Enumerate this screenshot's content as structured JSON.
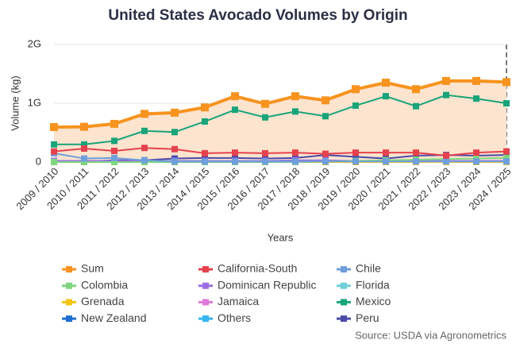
{
  "chart_data": {
    "type": "line",
    "title": "United States Avocado Volumes by Origin",
    "x_label": "Years",
    "y_label": "Volume (kg)",
    "source": "Source: USDA via Agronometrics",
    "categories": [
      "2009 / 2010",
      "2010 / 2011",
      "2011 / 2012",
      "2012 / 2013",
      "2013 / 2014",
      "2014 / 2015",
      "2015 / 2016",
      "2016 / 2017",
      "2017 / 2018",
      "2018 / 2019",
      "2019 / 2020",
      "2020 / 2021",
      "2021 / 2022",
      "2022 / 2023",
      "2023 / 2024",
      "2024 / 2025"
    ],
    "ylim": [
      0,
      2000000000
    ],
    "yticks": [
      0,
      {
        "value": 1000000000,
        "label": "1G"
      },
      {
        "value": 2000000000,
        "label": "2G"
      }
    ],
    "grid": true,
    "series": [
      {
        "name": "Sum",
        "color": "#f7931e",
        "area_color": "#fde4cf",
        "values": [
          595000000,
          600000000,
          650000000,
          820000000,
          840000000,
          930000000,
          1120000000,
          990000000,
          1120000000,
          1050000000,
          1240000000,
          1350000000,
          1240000000,
          1380000000,
          1380000000,
          1360000000
        ]
      },
      {
        "name": "California-South",
        "color": "#e5424d",
        "values": [
          180000000,
          230000000,
          190000000,
          240000000,
          220000000,
          150000000,
          160000000,
          150000000,
          160000000,
          140000000,
          160000000,
          160000000,
          160000000,
          110000000,
          160000000,
          180000000
        ]
      },
      {
        "name": "Chile",
        "color": "#6f9fdc",
        "values": [
          150000000,
          60000000,
          70000000,
          30000000,
          10000000,
          10000000,
          10000000,
          10000000,
          10000000,
          10000000,
          10000000,
          10000000,
          10000000,
          10000000,
          10000000,
          10000000
        ]
      },
      {
        "name": "Colombia",
        "color": "#7fd67f",
        "values": [
          0,
          0,
          0,
          0,
          0,
          0,
          0,
          0,
          0,
          10000000,
          20000000,
          30000000,
          40000000,
          50000000,
          60000000,
          70000000
        ]
      },
      {
        "name": "Dominican Republic",
        "color": "#9b6fe3",
        "values": [
          20000000,
          20000000,
          20000000,
          20000000,
          20000000,
          20000000,
          20000000,
          20000000,
          30000000,
          30000000,
          20000000,
          20000000,
          20000000,
          20000000,
          20000000,
          20000000
        ]
      },
      {
        "name": "Florida",
        "color": "#6fd0d8",
        "values": [
          20000000,
          20000000,
          20000000,
          20000000,
          20000000,
          20000000,
          20000000,
          20000000,
          20000000,
          20000000,
          20000000,
          20000000,
          20000000,
          20000000,
          20000000,
          20000000
        ]
      },
      {
        "name": "Grenada",
        "color": "#f5c518",
        "values": [
          0,
          0,
          0,
          0,
          0,
          0,
          0,
          0,
          0,
          0,
          0,
          0,
          0,
          0,
          0,
          0
        ]
      },
      {
        "name": "Jamaica",
        "color": "#e07ad8",
        "values": [
          0,
          0,
          0,
          0,
          0,
          0,
          0,
          0,
          0,
          0,
          0,
          0,
          0,
          0,
          0,
          0
        ]
      },
      {
        "name": "Mexico",
        "color": "#19a47a",
        "values": [
          300000000,
          300000000,
          360000000,
          530000000,
          510000000,
          690000000,
          890000000,
          760000000,
          860000000,
          780000000,
          960000000,
          1120000000,
          950000000,
          1140000000,
          1080000000,
          1000000000
        ]
      },
      {
        "name": "New Zealand",
        "color": "#1f6fd1",
        "values": [
          10000000,
          10000000,
          10000000,
          10000000,
          10000000,
          10000000,
          0,
          0,
          0,
          0,
          0,
          0,
          0,
          0,
          0,
          0
        ]
      },
      {
        "name": "Others",
        "color": "#33b5f2",
        "values": [
          10000000,
          10000000,
          10000000,
          10000000,
          10000000,
          10000000,
          10000000,
          10000000,
          10000000,
          10000000,
          10000000,
          10000000,
          10000000,
          10000000,
          10000000,
          10000000
        ]
      },
      {
        "name": "Peru",
        "color": "#4b4aa8",
        "values": [
          10000000,
          10000000,
          30000000,
          30000000,
          60000000,
          70000000,
          70000000,
          60000000,
          70000000,
          120000000,
          90000000,
          60000000,
          110000000,
          120000000,
          110000000,
          120000000
        ]
      }
    ]
  }
}
